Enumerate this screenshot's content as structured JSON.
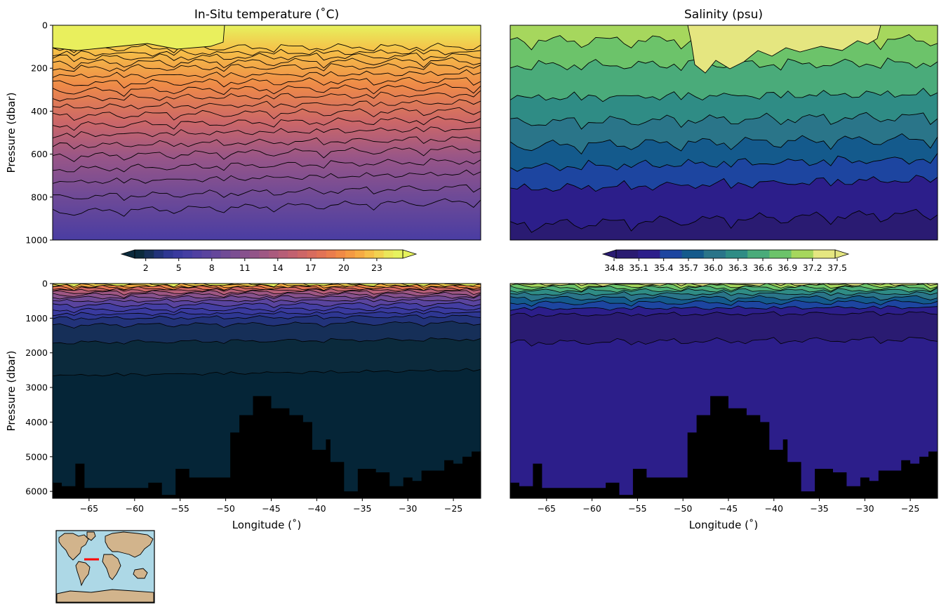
{
  "chart_data": [
    {
      "type": "heatmap",
      "title": "In-Situ temperature (˚C)",
      "xlabel": "",
      "ylabel": "Pressure (dbar)",
      "xlim": [
        -69,
        -22
      ],
      "ylim": [
        1000,
        0
      ],
      "y_ticks": [
        0,
        200,
        400,
        600,
        800,
        1000
      ],
      "contour_levels": [
        23,
        22,
        21,
        20,
        19,
        18,
        17,
        16,
        15,
        14,
        13,
        12,
        11,
        10,
        9,
        8,
        7,
        6,
        5
      ],
      "isotherm_depth_dbar": [
        105,
        130,
        150,
        175,
        200,
        235,
        270,
        305,
        340,
        380,
        420,
        465,
        510,
        560,
        610,
        670,
        730,
        800,
        870
      ],
      "surface_values_c": [
        25,
        26
      ]
    },
    {
      "type": "heatmap",
      "title": "Salinity (psu)",
      "xlabel": "",
      "ylabel": "",
      "xlim": [
        -69,
        -22
      ],
      "ylim": [
        1000,
        0
      ],
      "contour_levels": [
        37.2,
        36.9,
        36.6,
        36.3,
        36.0,
        35.7,
        35.4,
        35.1,
        34.8
      ],
      "isohaline_depth_dbar": [
        70,
        185,
        335,
        450,
        560,
        660,
        760,
        930
      ]
    },
    {
      "type": "heatmap",
      "title": "",
      "xlabel": "Longitude (˚)",
      "ylabel": "Pressure (dbar)",
      "xlim": [
        -69,
        -22
      ],
      "ylim": [
        6200,
        0
      ],
      "y_ticks": [
        0,
        1000,
        2000,
        3000,
        4000,
        5000,
        6000
      ],
      "x_ticks": [
        -65,
        -60,
        -55,
        -50,
        -45,
        -40,
        -35,
        -30,
        -25
      ],
      "deep_isotherm_depth_dbar": [
        1000,
        1200,
        1700,
        2650
      ],
      "bathymetry_lon": [
        -69,
        -68,
        -66.5,
        -65.5,
        -61,
        -58.5,
        -57,
        -55.5,
        -54,
        -49.5,
        -48.5,
        -47,
        -45,
        -43,
        -41.5,
        -40.5,
        -39,
        -38.5,
        -37,
        -35.5,
        -33.5,
        -32,
        -30.5,
        -29.5,
        -28.5,
        -26,
        -25,
        -24,
        -23,
        -22
      ],
      "bathymetry_depth_dbar": [
        5750,
        5850,
        5200,
        5900,
        5900,
        5750,
        6100,
        5350,
        5600,
        4300,
        3800,
        3250,
        3600,
        3800,
        4000,
        4800,
        4500,
        5150,
        6000,
        5350,
        5450,
        5850,
        5600,
        5700,
        5400,
        5100,
        5200,
        5000,
        4850,
        4850
      ]
    },
    {
      "type": "heatmap",
      "title": "",
      "xlabel": "Longitude (˚)",
      "ylabel": "",
      "xlim": [
        -69,
        -22
      ],
      "ylim": [
        6200,
        0
      ],
      "x_ticks": [
        -65,
        -60,
        -55,
        -50,
        -45,
        -40,
        -35,
        -30,
        -25
      ]
    }
  ],
  "colorbars": {
    "temperature": {
      "tick_labels": [
        "2",
        "5",
        "8",
        "11",
        "14",
        "17",
        "20",
        "23"
      ],
      "levels": [
        1,
        2,
        3,
        4,
        5,
        6,
        7,
        8,
        9,
        10,
        11,
        12,
        13,
        14,
        15,
        16,
        17,
        18,
        19,
        20,
        21,
        22,
        23,
        24,
        25
      ],
      "colors": [
        "#0b2a3c",
        "#162f58",
        "#22337a",
        "#2e3792",
        "#393a9e",
        "#443ea2",
        "#5040a1",
        "#5a449e",
        "#65479b",
        "#704b96",
        "#7b4e92",
        "#87518d",
        "#925488",
        "#9e5783",
        "#aa5a7d",
        "#b65e77",
        "#c26170",
        "#cd6667",
        "#d86c5e",
        "#e27355",
        "#ea7d4d",
        "#f08a46",
        "#f49a43",
        "#f6ab43",
        "#f6bf48",
        "#f2d250",
        "#ebe65a",
        "#e6f25e"
      ]
    },
    "salinity": {
      "tick_labels": [
        "34.8",
        "35.1",
        "35.4",
        "35.7",
        "36.0",
        "36.3",
        "36.6",
        "36.9",
        "37.2",
        "37.5"
      ],
      "colors": [
        "#2a1b72",
        "#2c1e8a",
        "#1d45a0",
        "#145a8c",
        "#2a7589",
        "#2f8c85",
        "#4aab7a",
        "#6cc36a",
        "#a6d75d",
        "#e5e680"
      ]
    }
  },
  "inset_map": {
    "ocean_color": "#add8e6",
    "land_color": "#d2b48c",
    "section_color": "#ff0000"
  }
}
